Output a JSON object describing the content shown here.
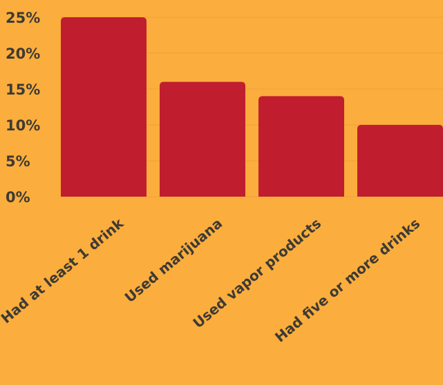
{
  "chart_data": {
    "type": "bar",
    "categories": [
      "Had at least 1 drink",
      "Used marijuana",
      "Used vapor products",
      "Had five or more drinks"
    ],
    "values": [
      25,
      16,
      14,
      10
    ],
    "ylim": [
      0,
      25
    ],
    "yticks": [
      "0%",
      "5%",
      "10%",
      "15%",
      "20%",
      "25%"
    ],
    "ytick_values": [
      0,
      5,
      10,
      15,
      20,
      25
    ],
    "grid": true,
    "legend": "none"
  },
  "colors": {
    "background": "#fbad3d",
    "bar": "#c01e2e",
    "text": "#3d3a34",
    "grid": "#f3a138"
  }
}
